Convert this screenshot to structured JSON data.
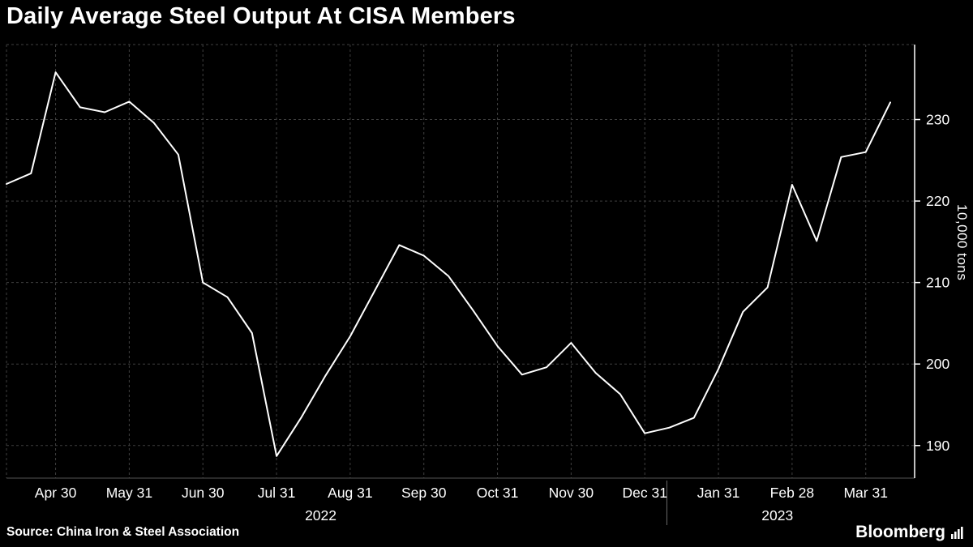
{
  "header": {
    "title": "Daily Average Steel Output At CISA Members"
  },
  "footer": {
    "source": "Source: China Iron & Steel Association",
    "brand": "Bloomberg"
  },
  "colors": {
    "background": "#000000",
    "line": "#ffffff",
    "grid": "#3f3f3f",
    "axis": "#ffffff",
    "bottom_axis": "#555555",
    "divider": "#6a6a6a",
    "text": "#ffffff"
  },
  "chart_data": {
    "type": "line",
    "title": "Daily Average Steel Output At CISA Members",
    "xlabel": "",
    "ylabel": "10,000 tons",
    "ylim": [
      186,
      239.2
    ],
    "yticks": [
      190,
      200,
      210,
      220,
      230
    ],
    "grid": "dashed",
    "legend_position": "none",
    "x": [
      "2022-04-10",
      "2022-04-20",
      "2022-04-30",
      "2022-05-10",
      "2022-05-20",
      "2022-05-31",
      "2022-06-10",
      "2022-06-20",
      "2022-06-30",
      "2022-07-10",
      "2022-07-20",
      "2022-07-31",
      "2022-08-10",
      "2022-08-20",
      "2022-08-31",
      "2022-09-10",
      "2022-09-20",
      "2022-09-30",
      "2022-10-10",
      "2022-10-20",
      "2022-10-31",
      "2022-11-10",
      "2022-11-20",
      "2022-11-30",
      "2022-12-10",
      "2022-12-20",
      "2022-12-31",
      "2023-01-10",
      "2023-01-20",
      "2023-01-31",
      "2023-02-10",
      "2023-02-20",
      "2023-02-28",
      "2023-03-10",
      "2023-03-20",
      "2023-03-31",
      "2023-04-10"
    ],
    "values": [
      222.1,
      223.4,
      235.8,
      231.5,
      230.9,
      232.2,
      229.6,
      225.7,
      210.0,
      208.2,
      203.8,
      188.7,
      193.4,
      198.6,
      203.4,
      209.0,
      214.6,
      213.3,
      210.8,
      206.6,
      202.2,
      198.7,
      199.6,
      202.6,
      198.9,
      196.3,
      191.5,
      192.2,
      193.4,
      199.4,
      206.4,
      209.4,
      222.0,
      215.1,
      225.4,
      226.0,
      232.1
    ],
    "x_tick_labels": [
      "Apr 30",
      "May 31",
      "Jun 30",
      "Jul 31",
      "Aug 31",
      "Sep 30",
      "Oct 31",
      "Nov 30",
      "Dec 31",
      "Jan 31",
      "Feb 28",
      "Mar 31"
    ],
    "x_tick_indices": [
      2,
      5,
      8,
      11,
      14,
      17,
      20,
      23,
      26,
      29,
      32,
      35
    ],
    "year_labels": [
      {
        "label": "2022",
        "index": 12.8
      },
      {
        "label": "2023",
        "index": 31.4
      }
    ],
    "year_divider_index": 26.9
  }
}
